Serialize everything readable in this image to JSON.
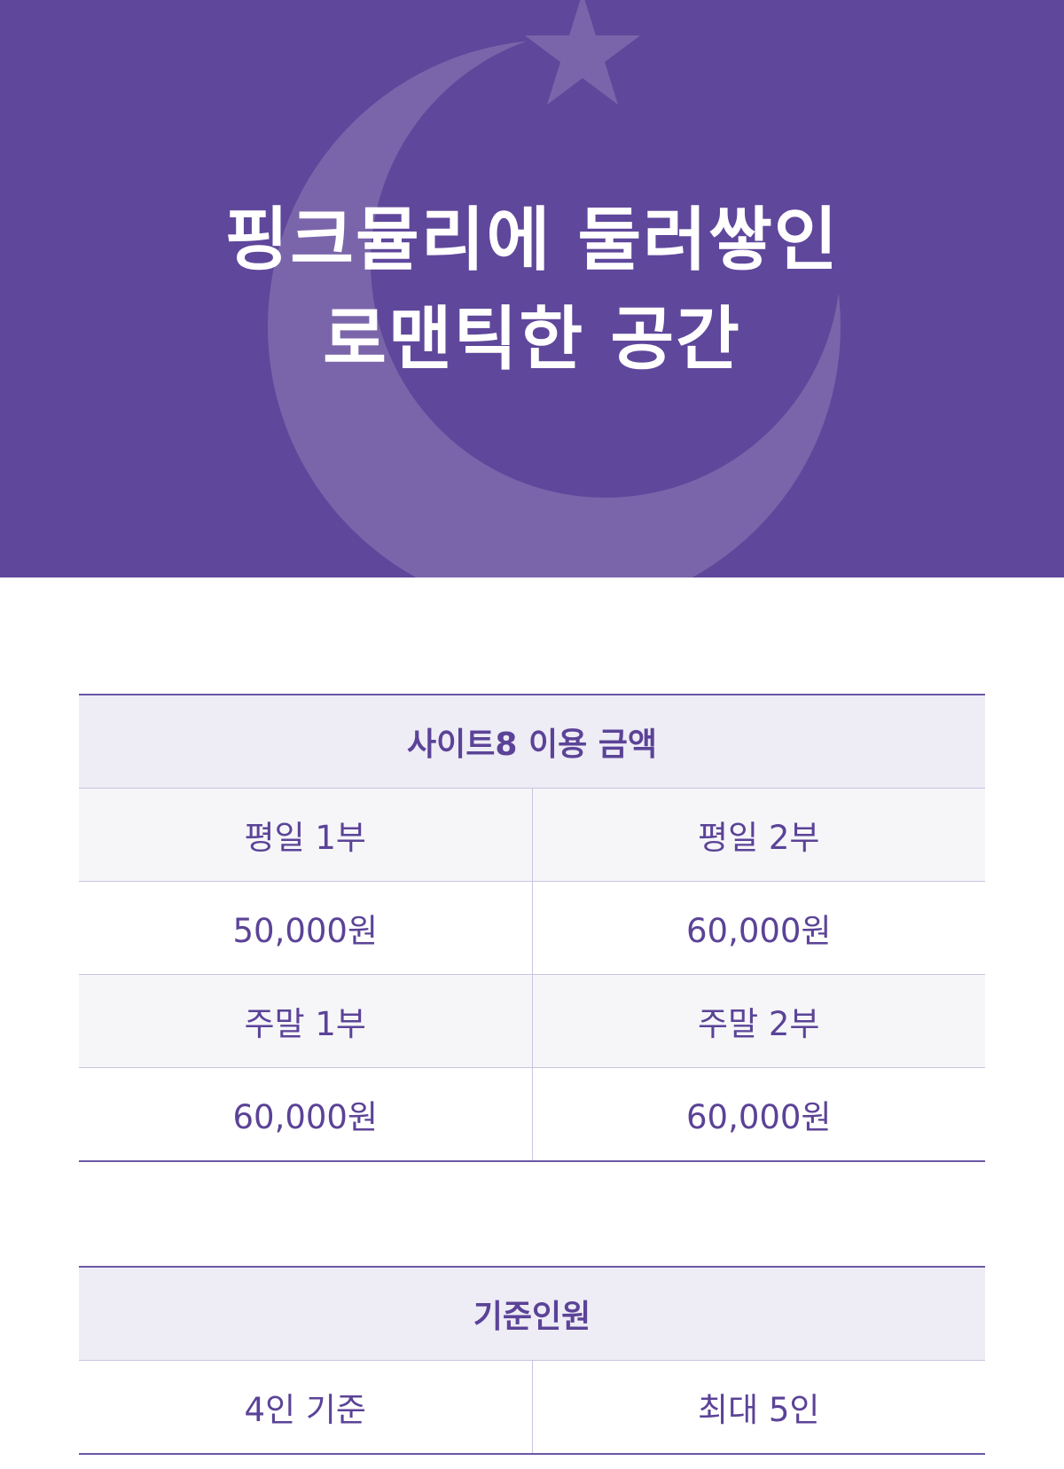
{
  "banner": {
    "title_line1": "핑크뮬리에 둘러쌓인",
    "title_line2": "로맨틱한 공간",
    "background_color": "#5f479b",
    "decoration": [
      "crescent-moon-icon",
      "star-icon"
    ]
  },
  "price_table": {
    "title": "사이트8 이용 금액",
    "rows": [
      [
        "평일 1부",
        "평일 2부"
      ],
      [
        "50,000원",
        "60,000원"
      ],
      [
        "주말 1부",
        "주말 2부"
      ],
      [
        "60,000원",
        "60,000원"
      ]
    ]
  },
  "capacity_table": {
    "title": "기준인원",
    "rows": [
      [
        "4인 기준",
        "최대 5인"
      ]
    ]
  },
  "colors": {
    "accent": "#5b4397",
    "header_bg": "#eeecf5",
    "label_row_bg": "#f6f6f9"
  }
}
